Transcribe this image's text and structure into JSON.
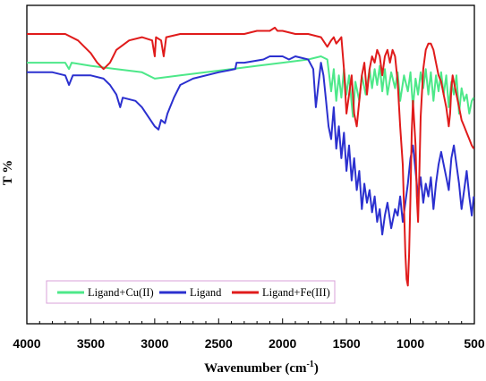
{
  "chart_data": {
    "type": "line",
    "xlabel": "Wavenumber (cm",
    "xlabel_sup": "-1",
    "xlabel_end": ")",
    "ylabel": "T %",
    "xlim": [
      4000,
      500
    ],
    "ylim": [
      0,
      100
    ],
    "x_reversed": true,
    "x_ticks": [
      4000,
      3500,
      3000,
      2500,
      2000,
      1500,
      1000,
      500
    ],
    "x_tick_labels": [
      "4000",
      "3500",
      "3000",
      "2500",
      "2000",
      "1500",
      "1000",
      "500"
    ],
    "y_ticks_shown": false,
    "grid": false,
    "legend_position": "bottom-left",
    "series": [
      {
        "name": "Ligand+Cu(II)",
        "color": "#4de889",
        "points": [
          [
            4000,
            82
          ],
          [
            3800,
            82
          ],
          [
            3700,
            82
          ],
          [
            3670,
            80
          ],
          [
            3650,
            82
          ],
          [
            3500,
            81
          ],
          [
            3300,
            80
          ],
          [
            3100,
            79
          ],
          [
            3000,
            77
          ],
          [
            2800,
            78
          ],
          [
            2600,
            79
          ],
          [
            2400,
            80
          ],
          [
            2200,
            81
          ],
          [
            2000,
            82
          ],
          [
            1800,
            83
          ],
          [
            1700,
            84
          ],
          [
            1650,
            83
          ],
          [
            1620,
            73
          ],
          [
            1600,
            80
          ],
          [
            1580,
            70
          ],
          [
            1560,
            78
          ],
          [
            1540,
            71
          ],
          [
            1520,
            80
          ],
          [
            1500,
            72
          ],
          [
            1480,
            78
          ],
          [
            1450,
            65
          ],
          [
            1430,
            76
          ],
          [
            1400,
            70
          ],
          [
            1380,
            78
          ],
          [
            1350,
            72
          ],
          [
            1320,
            80
          ],
          [
            1300,
            74
          ],
          [
            1280,
            80
          ],
          [
            1260,
            75
          ],
          [
            1240,
            81
          ],
          [
            1220,
            73
          ],
          [
            1200,
            80
          ],
          [
            1180,
            72
          ],
          [
            1150,
            79
          ],
          [
            1120,
            74
          ],
          [
            1100,
            79
          ],
          [
            1080,
            70
          ],
          [
            1050,
            78
          ],
          [
            1020,
            73
          ],
          [
            1000,
            79
          ],
          [
            980,
            68
          ],
          [
            960,
            77
          ],
          [
            940,
            72
          ],
          [
            920,
            79
          ],
          [
            900,
            74
          ],
          [
            880,
            80
          ],
          [
            860,
            72
          ],
          [
            840,
            79
          ],
          [
            820,
            70
          ],
          [
            800,
            78
          ],
          [
            780,
            73
          ],
          [
            760,
            79
          ],
          [
            740,
            72
          ],
          [
            720,
            78
          ],
          [
            700,
            68
          ],
          [
            680,
            76
          ],
          [
            660,
            72
          ],
          [
            640,
            78
          ],
          [
            620,
            66
          ],
          [
            600,
            74
          ],
          [
            580,
            70
          ],
          [
            560,
            72
          ],
          [
            540,
            66
          ],
          [
            520,
            70
          ],
          [
            505,
            71
          ]
        ]
      },
      {
        "name": "Ligand",
        "color": "#2b30cf",
        "points": [
          [
            4000,
            79
          ],
          [
            3800,
            79
          ],
          [
            3700,
            78
          ],
          [
            3670,
            75
          ],
          [
            3640,
            78
          ],
          [
            3500,
            78
          ],
          [
            3400,
            77
          ],
          [
            3350,
            75
          ],
          [
            3300,
            72
          ],
          [
            3270,
            68
          ],
          [
            3250,
            71
          ],
          [
            3150,
            70
          ],
          [
            3100,
            68
          ],
          [
            3050,
            65
          ],
          [
            3000,
            62
          ],
          [
            2970,
            61
          ],
          [
            2950,
            64
          ],
          [
            2920,
            63
          ],
          [
            2900,
            66
          ],
          [
            2850,
            71
          ],
          [
            2800,
            75
          ],
          [
            2700,
            77
          ],
          [
            2500,
            79
          ],
          [
            2370,
            80
          ],
          [
            2360,
            82
          ],
          [
            2300,
            82
          ],
          [
            2150,
            83
          ],
          [
            2100,
            84
          ],
          [
            2000,
            84
          ],
          [
            1950,
            83
          ],
          [
            1900,
            84
          ],
          [
            1800,
            83
          ],
          [
            1760,
            80
          ],
          [
            1740,
            68
          ],
          [
            1720,
            75
          ],
          [
            1700,
            82
          ],
          [
            1680,
            78
          ],
          [
            1660,
            70
          ],
          [
            1640,
            62
          ],
          [
            1620,
            58
          ],
          [
            1600,
            68
          ],
          [
            1580,
            55
          ],
          [
            1560,
            62
          ],
          [
            1540,
            52
          ],
          [
            1520,
            60
          ],
          [
            1500,
            48
          ],
          [
            1480,
            56
          ],
          [
            1460,
            45
          ],
          [
            1440,
            52
          ],
          [
            1420,
            42
          ],
          [
            1400,
            48
          ],
          [
            1380,
            36
          ],
          [
            1360,
            44
          ],
          [
            1340,
            38
          ],
          [
            1320,
            42
          ],
          [
            1300,
            35
          ],
          [
            1280,
            40
          ],
          [
            1260,
            32
          ],
          [
            1240,
            36
          ],
          [
            1220,
            28
          ],
          [
            1200,
            34
          ],
          [
            1180,
            38
          ],
          [
            1150,
            30
          ],
          [
            1120,
            36
          ],
          [
            1100,
            34
          ],
          [
            1080,
            40
          ],
          [
            1060,
            32
          ],
          [
            1040,
            38
          ],
          [
            1020,
            44
          ],
          [
            1000,
            52
          ],
          [
            980,
            56
          ],
          [
            960,
            48
          ],
          [
            940,
            40
          ],
          [
            920,
            46
          ],
          [
            900,
            38
          ],
          [
            880,
            44
          ],
          [
            860,
            40
          ],
          [
            840,
            46
          ],
          [
            820,
            36
          ],
          [
            800,
            44
          ],
          [
            780,
            50
          ],
          [
            760,
            54
          ],
          [
            740,
            50
          ],
          [
            720,
            46
          ],
          [
            700,
            42
          ],
          [
            680,
            52
          ],
          [
            660,
            56
          ],
          [
            640,
            50
          ],
          [
            620,
            44
          ],
          [
            600,
            36
          ],
          [
            580,
            42
          ],
          [
            560,
            48
          ],
          [
            540,
            40
          ],
          [
            520,
            34
          ],
          [
            505,
            40
          ]
        ]
      },
      {
        "name": "Ligand+Fe(III)",
        "color": "#e01b1b",
        "points": [
          [
            4000,
            91
          ],
          [
            3800,
            91
          ],
          [
            3700,
            91
          ],
          [
            3600,
            89
          ],
          [
            3500,
            85
          ],
          [
            3450,
            82
          ],
          [
            3400,
            80
          ],
          [
            3350,
            82
          ],
          [
            3300,
            86
          ],
          [
            3200,
            89
          ],
          [
            3100,
            90
          ],
          [
            3020,
            89
          ],
          [
            3000,
            84
          ],
          [
            2990,
            90
          ],
          [
            2950,
            89
          ],
          [
            2930,
            84
          ],
          [
            2910,
            90
          ],
          [
            2800,
            91
          ],
          [
            2600,
            91
          ],
          [
            2400,
            91
          ],
          [
            2300,
            91
          ],
          [
            2200,
            92
          ],
          [
            2100,
            92
          ],
          [
            2060,
            93
          ],
          [
            2040,
            92
          ],
          [
            2000,
            92
          ],
          [
            1900,
            91
          ],
          [
            1800,
            91
          ],
          [
            1700,
            90
          ],
          [
            1650,
            87
          ],
          [
            1620,
            89
          ],
          [
            1600,
            90
          ],
          [
            1580,
            88
          ],
          [
            1560,
            89
          ],
          [
            1540,
            90
          ],
          [
            1520,
            80
          ],
          [
            1500,
            66
          ],
          [
            1480,
            72
          ],
          [
            1460,
            78
          ],
          [
            1440,
            66
          ],
          [
            1420,
            62
          ],
          [
            1400,
            70
          ],
          [
            1380,
            78
          ],
          [
            1360,
            82
          ],
          [
            1340,
            72
          ],
          [
            1320,
            80
          ],
          [
            1300,
            84
          ],
          [
            1280,
            82
          ],
          [
            1260,
            86
          ],
          [
            1240,
            84
          ],
          [
            1220,
            78
          ],
          [
            1200,
            84
          ],
          [
            1180,
            86
          ],
          [
            1160,
            82
          ],
          [
            1140,
            86
          ],
          [
            1120,
            84
          ],
          [
            1100,
            76
          ],
          [
            1080,
            62
          ],
          [
            1060,
            50
          ],
          [
            1040,
            22
          ],
          [
            1030,
            14
          ],
          [
            1020,
            12
          ],
          [
            1010,
            22
          ],
          [
            1000,
            40
          ],
          [
            990,
            60
          ],
          [
            980,
            70
          ],
          [
            960,
            56
          ],
          [
            950,
            40
          ],
          [
            940,
            32
          ],
          [
            930,
            48
          ],
          [
            920,
            65
          ],
          [
            900,
            80
          ],
          [
            880,
            86
          ],
          [
            860,
            88
          ],
          [
            840,
            88
          ],
          [
            820,
            86
          ],
          [
            800,
            82
          ],
          [
            780,
            78
          ],
          [
            760,
            76
          ],
          [
            740,
            72
          ],
          [
            720,
            68
          ],
          [
            700,
            62
          ],
          [
            690,
            66
          ],
          [
            680,
            74
          ],
          [
            670,
            78
          ],
          [
            660,
            76
          ],
          [
            640,
            72
          ],
          [
            620,
            68
          ],
          [
            600,
            64
          ],
          [
            580,
            62
          ],
          [
            560,
            60
          ],
          [
            540,
            58
          ],
          [
            520,
            56
          ],
          [
            505,
            55
          ]
        ]
      }
    ]
  }
}
